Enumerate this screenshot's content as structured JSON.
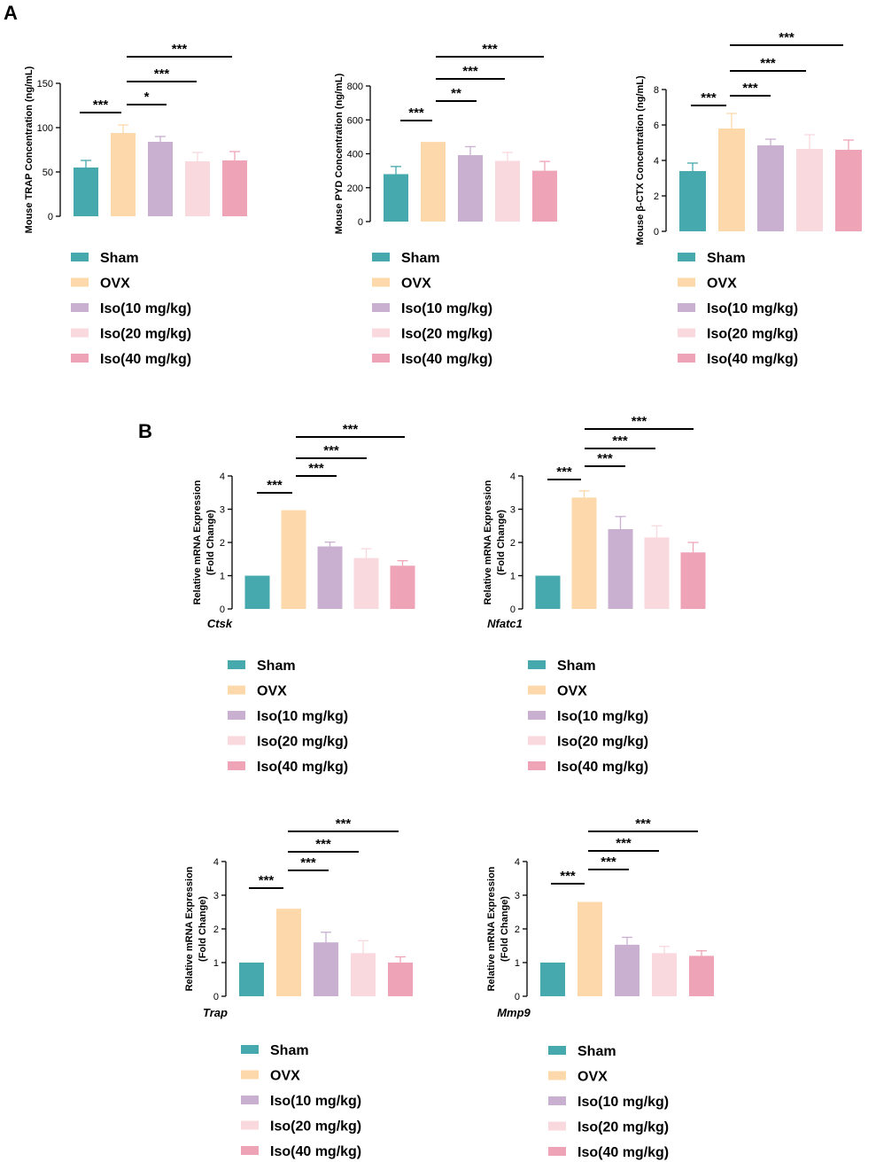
{
  "panels": [
    {
      "letter": "A"
    },
    {
      "letter": "B"
    }
  ],
  "legend_groups": [
    "Sham",
    "OVX",
    "Iso(10 mg/kg)",
    "Iso(20 mg/kg)",
    "Iso(40 mg/kg)"
  ],
  "colors": {
    "Sham": "#46A9AD",
    "OVX": "#FDD8AA",
    "Iso(10 mg/kg)": "#C9B0D1",
    "Iso(20 mg/kg)": "#F9D8DE",
    "Iso(40 mg/kg)": "#EEA3B6"
  },
  "chart_data": [
    {
      "type": "bar",
      "panel": "A",
      "title": "",
      "xlabel": "",
      "ylabel": "Mouse TRAP Concentration  (ng/mL)",
      "categories": [
        "Sham",
        "OVX",
        "Iso(10 mg/kg)",
        "Iso(20 mg/kg)",
        "Iso(40 mg/kg)"
      ],
      "values": [
        55,
        94,
        84,
        62,
        63
      ],
      "errors": [
        8,
        9,
        6,
        10,
        10
      ],
      "ylim": [
        0,
        150
      ],
      "yticks": [
        0,
        50,
        100,
        150
      ],
      "significance": [
        {
          "from": 0,
          "to": 1,
          "label": "***"
        },
        {
          "from": 1,
          "to": 2,
          "label": "*"
        },
        {
          "from": 1,
          "to": 3,
          "label": "***"
        },
        {
          "from": 1,
          "to": 4,
          "label": "***"
        }
      ]
    },
    {
      "type": "bar",
      "panel": "A",
      "title": "",
      "xlabel": "",
      "ylabel": "Mouse PYD Concentration  (ng/mL)",
      "categories": [
        "Sham",
        "OVX",
        "Iso(10 mg/kg)",
        "Iso(20 mg/kg)",
        "Iso(40 mg/kg)"
      ],
      "values": [
        280,
        470,
        392,
        358,
        300
      ],
      "errors": [
        45,
        0,
        50,
        50,
        55
      ],
      "ylim": [
        0,
        800
      ],
      "yticks": [
        0,
        200,
        400,
        600,
        800
      ],
      "significance": [
        {
          "from": 0,
          "to": 1,
          "label": "***"
        },
        {
          "from": 1,
          "to": 2,
          "label": "**"
        },
        {
          "from": 1,
          "to": 3,
          "label": "***"
        },
        {
          "from": 1,
          "to": 4,
          "label": "***"
        }
      ]
    },
    {
      "type": "bar",
      "panel": "A",
      "title": "",
      "xlabel": "",
      "ylabel": "Mouse β-CTX Concentration  (ng/mL)",
      "categories": [
        "Sham",
        "OVX",
        "Iso(10 mg/kg)",
        "Iso(20 mg/kg)",
        "Iso(40 mg/kg)"
      ],
      "values": [
        3.4,
        5.8,
        4.85,
        4.65,
        4.6
      ],
      "errors": [
        0.45,
        0.85,
        0.35,
        0.8,
        0.55
      ],
      "ylim": [
        0,
        8
      ],
      "yticks": [
        0,
        2,
        4,
        6,
        8
      ],
      "significance": [
        {
          "from": 0,
          "to": 1,
          "label": "***"
        },
        {
          "from": 1,
          "to": 2,
          "label": "***"
        },
        {
          "from": 1,
          "to": 3,
          "label": "***"
        },
        {
          "from": 1,
          "to": 4,
          "label": "***"
        }
      ]
    },
    {
      "type": "bar",
      "panel": "B",
      "title": "",
      "xlabel": "Ctsk",
      "ylabel": "Relative mRNA Expression\n(Fold Change)",
      "categories": [
        "Sham",
        "OVX",
        "Iso(10 mg/kg)",
        "Iso(20 mg/kg)",
        "Iso(40 mg/kg)"
      ],
      "values": [
        1.0,
        2.97,
        1.88,
        1.53,
        1.3
      ],
      "errors": [
        0,
        0,
        0.13,
        0.28,
        0.15
      ],
      "ylim": [
        0,
        4
      ],
      "yticks": [
        0,
        1,
        2,
        3,
        4
      ],
      "significance": [
        {
          "from": 0,
          "to": 1,
          "label": "***"
        },
        {
          "from": 1,
          "to": 2,
          "label": "***"
        },
        {
          "from": 1,
          "to": 3,
          "label": "***"
        },
        {
          "from": 1,
          "to": 4,
          "label": "***"
        }
      ]
    },
    {
      "type": "bar",
      "panel": "B",
      "title": "",
      "xlabel": "Nfatc1",
      "ylabel": "Relative mRNA Expression\n(Fold Change)",
      "categories": [
        "Sham",
        "OVX",
        "Iso(10 mg/kg)",
        "Iso(20 mg/kg)",
        "Iso(40 mg/kg)"
      ],
      "values": [
        1.0,
        3.35,
        2.4,
        2.15,
        1.7
      ],
      "errors": [
        0,
        0.2,
        0.38,
        0.35,
        0.3
      ],
      "ylim": [
        0,
        4
      ],
      "yticks": [
        0,
        1,
        2,
        3,
        4
      ],
      "significance": [
        {
          "from": 0,
          "to": 1,
          "label": "***"
        },
        {
          "from": 1,
          "to": 2,
          "label": "***"
        },
        {
          "from": 1,
          "to": 3,
          "label": "***"
        },
        {
          "from": 1,
          "to": 4,
          "label": "***"
        }
      ]
    },
    {
      "type": "bar",
      "panel": "B",
      "title": "",
      "xlabel": "Trap",
      "ylabel": "Relative mRNA Expression\n(Fold Change)",
      "categories": [
        "Sham",
        "OVX",
        "Iso(10 mg/kg)",
        "Iso(20 mg/kg)",
        "Iso(40 mg/kg)"
      ],
      "values": [
        1.0,
        2.6,
        1.6,
        1.28,
        1.0
      ],
      "errors": [
        0,
        0,
        0.3,
        0.37,
        0.17
      ],
      "ylim": [
        0,
        4
      ],
      "yticks": [
        0,
        1,
        2,
        3,
        4
      ],
      "significance": [
        {
          "from": 0,
          "to": 1,
          "label": "***"
        },
        {
          "from": 1,
          "to": 2,
          "label": "***"
        },
        {
          "from": 1,
          "to": 3,
          "label": "***"
        },
        {
          "from": 1,
          "to": 4,
          "label": "***"
        }
      ]
    },
    {
      "type": "bar",
      "panel": "B",
      "title": "",
      "xlabel": "Mmp9",
      "ylabel": "Relative mRNA Expression\n(Fold Change)",
      "categories": [
        "Sham",
        "OVX",
        "Iso(10 mg/kg)",
        "Iso(20 mg/kg)",
        "Iso(40 mg/kg)"
      ],
      "values": [
        1.0,
        2.8,
        1.53,
        1.28,
        1.2
      ],
      "errors": [
        0,
        0,
        0.22,
        0.2,
        0.15
      ],
      "ylim": [
        0,
        4
      ],
      "yticks": [
        0,
        1,
        2,
        3,
        4
      ],
      "significance": [
        {
          "from": 0,
          "to": 1,
          "label": "***"
        },
        {
          "from": 1,
          "to": 2,
          "label": "***"
        },
        {
          "from": 1,
          "to": 3,
          "label": "***"
        },
        {
          "from": 1,
          "to": 4,
          "label": "***"
        }
      ]
    }
  ]
}
